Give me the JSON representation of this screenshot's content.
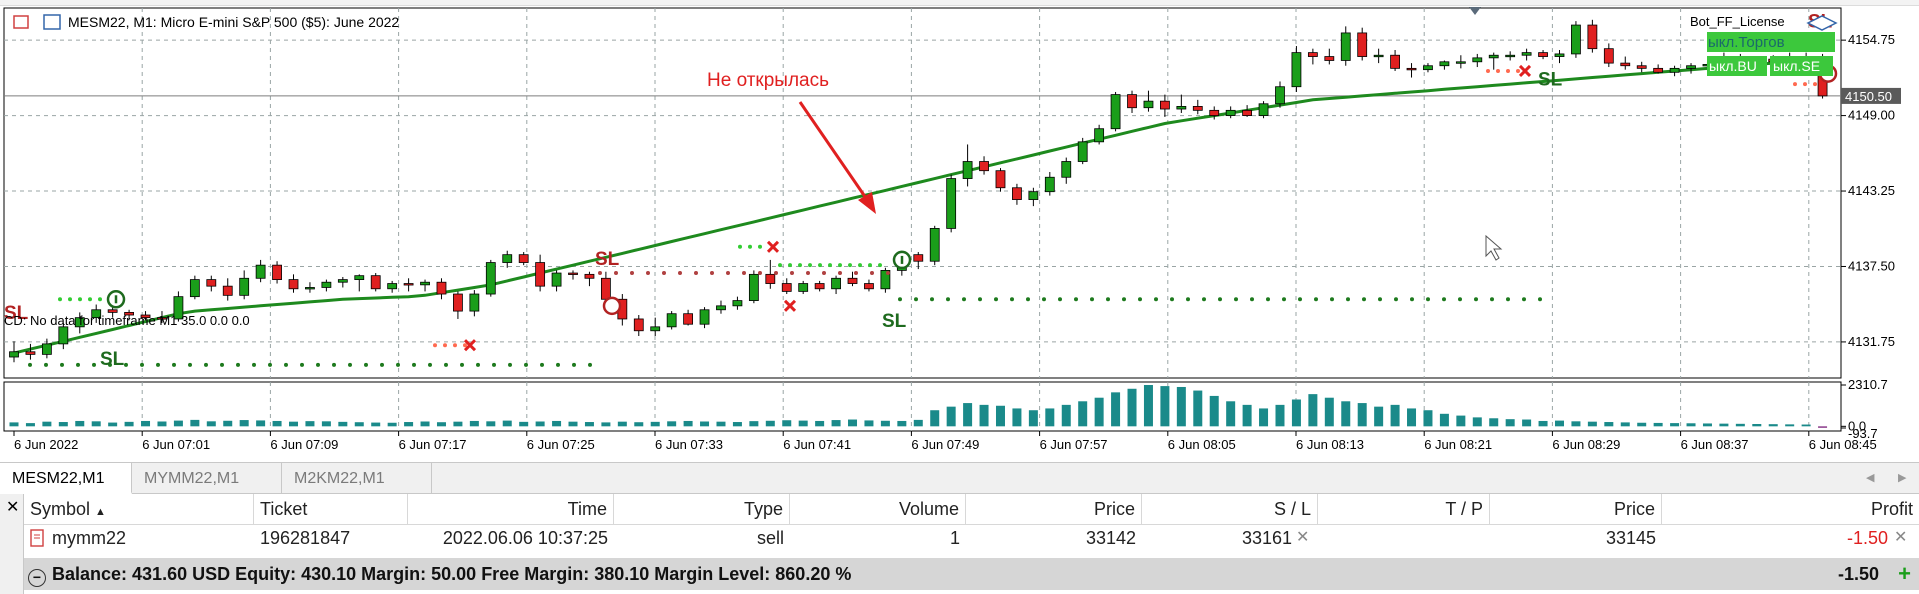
{
  "window": {
    "chart_title": "MESM22, M1:  Micro E-mini S&P 500 ($5): June 2022",
    "indicator_status": "CD: No data for timeframe M1 35.0 0.0 0.0",
    "license_label": "Bot_FF_License",
    "panel_buttons": [
      "ыкл.Торгов",
      "ыкл.BU",
      "ыкл.SE"
    ],
    "annotation": "Не открылась",
    "sl_label": "SL"
  },
  "price_axis": {
    "ticks": [
      "4154.75",
      "4149.00",
      "4143.25",
      "4137.50",
      "4131.75"
    ],
    "current_price": "4150.50",
    "indicator_ticks": [
      "2310.7",
      "0.0",
      "-93.7"
    ]
  },
  "time_axis": {
    "labels": [
      "6 Jun 2022",
      "6 Jun 07:01",
      "6 Jun 07:09",
      "6 Jun 07:17",
      "6 Jun 07:25",
      "6 Jun 07:33",
      "6 Jun 07:41",
      "6 Jun 07:49",
      "6 Jun 07:57",
      "6 Jun 08:05",
      "6 Jun 08:13",
      "6 Jun 08:21",
      "6 Jun 08:29",
      "6 Jun 08:37",
      "6 Jun 08:45"
    ]
  },
  "tabs": [
    {
      "label": "MESM22,M1",
      "active": true
    },
    {
      "label": "MYMM22,M1",
      "active": false
    },
    {
      "label": "M2KM22,M1",
      "active": false
    }
  ],
  "terminal": {
    "headers": [
      "Symbol",
      "Ticket",
      "Time",
      "Type",
      "Volume",
      "Price",
      "S / L",
      "T / P",
      "Price",
      "Profit"
    ],
    "row": {
      "symbol": "mymm22",
      "ticket": "196281847",
      "time": "2022.06.06 10:37:25",
      "type": "sell",
      "volume": "1",
      "open_price": "33142",
      "sl": "33161",
      "tp": "",
      "price": "33145",
      "profit": "-1.50"
    },
    "summary": "Balance: 431.60 USD  Equity: 430.10  Margin: 50.00  Free Margin: 380.10  Margin Level: 860.20 %",
    "summary_profit": "-1.50"
  },
  "colors": {
    "bull": "#1a9e1a",
    "bear": "#e02020",
    "ma": "#1e8a1e",
    "volume": "#1a8a8a",
    "sl_text": "#b22222",
    "annotation": "#e02020",
    "panel_green": "#3cc83c"
  },
  "chart_data": {
    "type": "candlestick",
    "symbol": "MESM22",
    "timeframe": "M1",
    "ohlc": [
      [
        4130.6,
        4131.8,
        4130.2,
        4131.0
      ],
      [
        4131.0,
        4131.6,
        4130.4,
        4130.8
      ],
      [
        4130.8,
        4132.0,
        4130.5,
        4131.6
      ],
      [
        4131.6,
        4133.2,
        4131.2,
        4132.9
      ],
      [
        4132.9,
        4134.0,
        4132.4,
        4133.6
      ],
      [
        4133.6,
        4134.6,
        4133.2,
        4134.2
      ],
      [
        4134.2,
        4134.6,
        4133.6,
        4134.0
      ],
      [
        4134.0,
        4134.2,
        4133.4,
        4133.8
      ],
      [
        4133.8,
        4134.1,
        4133.4,
        4133.6
      ],
      [
        4133.6,
        4134.1,
        4133.2,
        4133.5
      ],
      [
        4133.5,
        4135.6,
        4133.3,
        4135.2
      ],
      [
        4135.2,
        4136.8,
        4135.0,
        4136.5
      ],
      [
        4136.5,
        4136.8,
        4135.6,
        4136.0
      ],
      [
        4136.0,
        4136.6,
        4134.9,
        4135.3
      ],
      [
        4135.3,
        4137.2,
        4135.0,
        4136.6
      ],
      [
        4136.6,
        4138.0,
        4136.3,
        4137.6
      ],
      [
        4137.6,
        4137.9,
        4136.2,
        4136.5
      ],
      [
        4136.5,
        4136.9,
        4135.5,
        4135.8
      ],
      [
        4135.8,
        4136.3,
        4135.5,
        4135.9
      ],
      [
        4135.9,
        4136.5,
        4135.6,
        4136.3
      ],
      [
        4136.3,
        4136.7,
        4135.9,
        4136.5
      ],
      [
        4136.5,
        4136.9,
        4135.6,
        4136.8
      ],
      [
        4136.8,
        4137.0,
        4135.6,
        4135.8
      ],
      [
        4135.8,
        4136.4,
        4135.5,
        4136.2
      ],
      [
        4136.2,
        4136.6,
        4135.6,
        4136.1
      ],
      [
        4136.1,
        4136.5,
        4135.6,
        4136.3
      ],
      [
        4136.3,
        4136.6,
        4135.0,
        4135.4
      ],
      [
        4135.4,
        4135.6,
        4133.5,
        4134.1
      ],
      [
        4134.1,
        4135.7,
        4133.7,
        4135.4
      ],
      [
        4135.4,
        4138.0,
        4135.2,
        4137.8
      ],
      [
        4137.8,
        4138.7,
        4137.4,
        4138.4
      ],
      [
        4138.4,
        4138.6,
        4137.6,
        4137.8
      ],
      [
        4137.8,
        4138.4,
        4135.6,
        4136.0
      ],
      [
        4136.0,
        4137.2,
        4135.6,
        4137.0
      ],
      [
        4137.0,
        4137.2,
        4136.5,
        4136.9
      ],
      [
        4136.9,
        4137.1,
        4136.0,
        4136.6
      ],
      [
        4136.6,
        4137.1,
        4134.7,
        4135.0
      ],
      [
        4135.0,
        4135.4,
        4133.0,
        4133.5
      ],
      [
        4133.5,
        4133.8,
        4132.2,
        4132.6
      ],
      [
        4132.6,
        4133.6,
        4132.2,
        4132.9
      ],
      [
        4132.9,
        4134.1,
        4132.7,
        4133.9
      ],
      [
        4133.9,
        4134.2,
        4133.0,
        4133.1
      ],
      [
        4133.1,
        4134.4,
        4132.8,
        4134.2
      ],
      [
        4134.2,
        4134.9,
        4133.9,
        4134.5
      ],
      [
        4134.5,
        4135.2,
        4134.2,
        4134.9
      ],
      [
        4134.9,
        4137.2,
        4134.7,
        4136.9
      ],
      [
        4136.9,
        4138.0,
        4135.8,
        4136.2
      ],
      [
        4136.2,
        4136.6,
        4135.4,
        4135.6
      ],
      [
        4135.6,
        4136.4,
        4135.4,
        4136.2
      ],
      [
        4136.2,
        4136.4,
        4135.6,
        4135.8
      ],
      [
        4135.8,
        4136.8,
        4135.4,
        4136.6
      ],
      [
        4136.6,
        4137.1,
        4136.0,
        4136.2
      ],
      [
        4136.2,
        4136.5,
        4135.6,
        4135.8
      ],
      [
        4135.8,
        4137.4,
        4135.5,
        4137.2
      ],
      [
        4137.2,
        4138.7,
        4136.8,
        4138.4
      ],
      [
        4138.4,
        4138.6,
        4137.3,
        4137.9
      ],
      [
        4137.9,
        4140.6,
        4137.6,
        4140.4
      ],
      [
        4140.4,
        4144.5,
        4140.1,
        4144.2
      ],
      [
        4144.2,
        4146.8,
        4143.6,
        4145.5
      ],
      [
        4145.5,
        4145.9,
        4144.5,
        4144.8
      ],
      [
        4144.8,
        4145.0,
        4143.2,
        4143.5
      ],
      [
        4143.5,
        4143.8,
        4142.2,
        4142.6
      ],
      [
        4142.6,
        4143.5,
        4142.1,
        4143.2
      ],
      [
        4143.2,
        4144.7,
        4142.9,
        4144.3
      ],
      [
        4144.3,
        4145.8,
        4143.8,
        4145.5
      ],
      [
        4145.5,
        4147.3,
        4145.3,
        4147.0
      ],
      [
        4147.0,
        4148.3,
        4146.8,
        4148.0
      ],
      [
        4148.0,
        4150.8,
        4147.8,
        4150.6
      ],
      [
        4150.6,
        4150.9,
        4149.2,
        4149.6
      ],
      [
        4149.6,
        4150.9,
        4149.3,
        4150.1
      ],
      [
        4150.1,
        4150.6,
        4148.9,
        4149.5
      ],
      [
        4149.5,
        4150.6,
        4149.2,
        4149.7
      ],
      [
        4149.7,
        4150.2,
        4149.1,
        4149.4
      ],
      [
        4149.4,
        4149.7,
        4148.7,
        4149.0
      ],
      [
        4149.0,
        4149.7,
        4148.8,
        4149.4
      ],
      [
        4149.4,
        4149.8,
        4148.9,
        4149.0
      ],
      [
        4149.0,
        4150.1,
        4148.8,
        4149.9
      ],
      [
        4149.9,
        4151.6,
        4149.6,
        4151.2
      ],
      [
        4151.2,
        4154.3,
        4150.8,
        4153.8
      ],
      [
        4153.8,
        4154.1,
        4152.9,
        4153.5
      ],
      [
        4153.5,
        4154.1,
        4152.9,
        4153.2
      ],
      [
        4153.2,
        4155.8,
        4152.8,
        4155.3
      ],
      [
        4155.3,
        4155.7,
        4153.2,
        4153.5
      ],
      [
        4153.5,
        4154.1,
        4153.0,
        4153.6
      ],
      [
        4153.6,
        4154.0,
        4152.4,
        4152.6
      ],
      [
        4152.6,
        4153.0,
        4151.9,
        4152.5
      ],
      [
        4152.5,
        4153.0,
        4152.3,
        4152.8
      ],
      [
        4152.8,
        4153.2,
        4152.5,
        4153.1
      ],
      [
        4153.1,
        4153.6,
        4152.6,
        4153.1
      ],
      [
        4153.1,
        4153.7,
        4152.7,
        4153.4
      ],
      [
        4153.4,
        4153.8,
        4152.5,
        4153.6
      ],
      [
        4153.6,
        4153.9,
        4153.2,
        4153.6
      ],
      [
        4153.6,
        4154.1,
        4153.2,
        4153.8
      ],
      [
        4153.8,
        4154.0,
        4153.3,
        4153.5
      ],
      [
        4153.5,
        4154.0,
        4153.0,
        4153.7
      ],
      [
        4153.7,
        4156.2,
        4153.4,
        4155.9
      ],
      [
        4155.9,
        4156.3,
        4153.8,
        4154.1
      ],
      [
        4154.1,
        4154.5,
        4152.7,
        4153.0
      ],
      [
        4153.0,
        4153.5,
        4152.5,
        4152.8
      ],
      [
        4152.8,
        4153.1,
        4152.3,
        4152.6
      ],
      [
        4152.6,
        4152.9,
        4152.2,
        4152.3
      ],
      [
        4152.3,
        4152.8,
        4152.0,
        4152.6
      ],
      [
        4152.6,
        4153.0,
        4152.2,
        4152.8
      ],
      [
        4152.8,
        4153.1,
        4152.4,
        4152.9
      ],
      [
        4152.9,
        4153.8,
        4152.6,
        4153.4
      ],
      [
        4153.4,
        4153.7,
        4152.9,
        4153.2
      ],
      [
        4153.2,
        4153.5,
        4152.8,
        4153.3
      ],
      [
        4153.3,
        4153.6,
        4152.9,
        4153.1
      ],
      [
        4153.1,
        4153.8,
        4152.6,
        4153.4
      ],
      [
        4153.4,
        4153.8,
        4153.0,
        4153.5
      ],
      [
        4153.5,
        4153.7,
        4150.3,
        4150.5
      ]
    ],
    "ma": [
      4130.9,
      4131.2,
      4131.5,
      4131.8,
      4132.1,
      4132.4,
      4132.7,
      4133.0,
      4133.3,
      4133.6,
      4133.9,
      4134.1,
      4134.2,
      4134.3,
      4134.4,
      4134.5,
      4134.6,
      4134.7,
      4134.8,
      4134.9,
      4135.0,
      4135.05,
      4135.1,
      4135.15,
      4135.2,
      4135.3,
      4135.5,
      4135.7,
      4135.9,
      4136.1,
      4136.4,
      4136.7,
      4137.0,
      4137.3,
      4137.6,
      4137.9,
      4138.2,
      4138.5,
      4138.8,
      4139.1,
      4139.4,
      4139.7,
      4140.0,
      4140.3,
      4140.6,
      4140.9,
      4141.2,
      4141.5,
      4141.8,
      4142.1,
      4142.4,
      4142.7,
      4143.0,
      4143.3,
      4143.6,
      4143.9,
      4144.2,
      4144.5,
      4144.8,
      4145.1,
      4145.4,
      4145.7,
      4146.0,
      4146.3,
      4146.6,
      4146.9,
      4147.2,
      4147.5,
      4147.8,
      4148.1,
      4148.4,
      4148.6,
      4148.8,
      4149.0,
      4149.2,
      4149.4,
      4149.6,
      4149.8,
      4150.0,
      4150.2,
      4150.3,
      4150.4,
      4150.5,
      4150.6,
      4150.7,
      4150.8,
      4150.9,
      4151.0,
      4151.1,
      4151.2,
      4151.3,
      4151.4,
      4151.5,
      4151.6,
      4151.7,
      4151.8,
      4151.9,
      4152.0,
      4152.1,
      4152.2,
      4152.3,
      4152.4,
      4152.5,
      4152.6,
      4152.7,
      4152.8,
      4152.9,
      4153.0,
      4153.1,
      4153.2,
      4153.3
    ],
    "volume": [
      0,
      0,
      0,
      0,
      0,
      0,
      0,
      0,
      0,
      0,
      0,
      0,
      0,
      0,
      0,
      0,
      0,
      0,
      0,
      0,
      0,
      0,
      0,
      0,
      0,
      0,
      0,
      0,
      0,
      0,
      0,
      0,
      0,
      0,
      0,
      0,
      0,
      0,
      0,
      0,
      0,
      0,
      0,
      0,
      0,
      0,
      0,
      0,
      0,
      0,
      0,
      0,
      0,
      0,
      0,
      0,
      0,
      0,
      0,
      0,
      0,
      0,
      0,
      0,
      0,
      0,
      0,
      0,
      0,
      0,
      0,
      0,
      0,
      0,
      0,
      0,
      0,
      0,
      0,
      0,
      0,
      0,
      0,
      0,
      0,
      0,
      0,
      0,
      0,
      0,
      0,
      0,
      0,
      0,
      0,
      0,
      0,
      0,
      0,
      0,
      0,
      0,
      0,
      0,
      0,
      0,
      0,
      0,
      0,
      0,
      0
    ],
    "volume_hist": [
      220,
      180,
      260,
      240,
      300,
      280,
      210,
      250,
      300,
      270,
      320,
      360,
      280,
      310,
      350,
      330,
      300,
      260,
      290,
      280,
      250,
      230,
      210,
      200,
      240,
      270,
      230,
      260,
      300,
      280,
      320,
      250,
      270,
      300,
      260,
      240,
      220,
      260,
      230,
      250,
      280,
      300,
      270,
      260,
      240,
      290,
      310,
      340,
      320,
      300,
      350,
      380,
      330,
      310,
      300,
      360,
      900,
      1100,
      1300,
      1200,
      1150,
      1000,
      900,
      1000,
      1200,
      1400,
      1600,
      1900,
      2100,
      2310,
      2250,
      2200,
      2000,
      1700,
      1400,
      1200,
      1000,
      1200,
      1500,
      1800,
      1600,
      1400,
      1300,
      1100,
      1200,
      1000,
      900,
      700,
      600,
      500,
      450,
      400,
      380,
      300,
      320,
      280,
      260,
      240,
      220,
      200,
      190,
      180,
      170,
      160,
      150,
      140,
      130,
      120,
      110,
      100,
      -60
    ],
    "y_range": [
      4129.0,
      4157.2
    ],
    "indicator_range": [
      -93.7,
      2310.7
    ],
    "x_labels": [
      "6 Jun 2022",
      "6 Jun 07:01",
      "6 Jun 07:09",
      "6 Jun 07:17",
      "6 Jun 07:25",
      "6 Jun 07:33",
      "6 Jun 07:41",
      "6 Jun 07:49",
      "6 Jun 07:57",
      "6 Jun 08:05",
      "6 Jun 08:13",
      "6 Jun 08:21",
      "6 Jun 08:29",
      "6 Jun 08:37",
      "6 Jun 08:45"
    ],
    "y_ticks": [
      4154.75,
      4149.0,
      4143.25,
      4137.5,
      4131.75
    ]
  }
}
